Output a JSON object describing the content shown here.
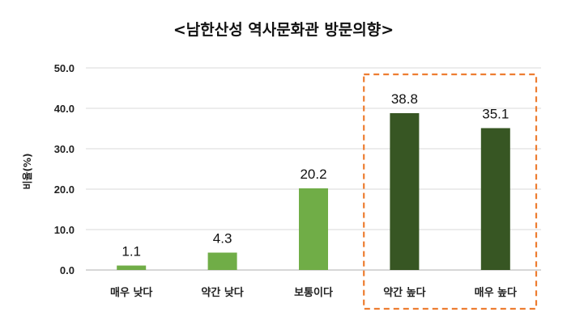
{
  "chart_data": {
    "type": "bar",
    "title": "<남한산성 역사문화관 방문의향>",
    "ylabel": "비율(%)",
    "xlabel": "",
    "ylim": [
      0,
      50
    ],
    "yticks": [
      "0.0",
      "10.0",
      "20.0",
      "30.0",
      "40.0",
      "50.0"
    ],
    "grid": true,
    "categories": [
      "매우 낮다",
      "약간 낮다",
      "보통이다",
      "약간 높다",
      "매우 높다"
    ],
    "values": [
      1.1,
      4.3,
      20.2,
      38.8,
      35.1
    ],
    "value_labels": [
      "1.1",
      "4.3",
      "20.2",
      "38.8",
      "35.1"
    ],
    "bar_colors": [
      "#70ad47",
      "#70ad47",
      "#70ad47",
      "#375623",
      "#375623"
    ],
    "highlight": {
      "categories": [
        "약간 높다",
        "매우 높다"
      ],
      "color": "#ed7d31",
      "style": "dashed box"
    }
  }
}
